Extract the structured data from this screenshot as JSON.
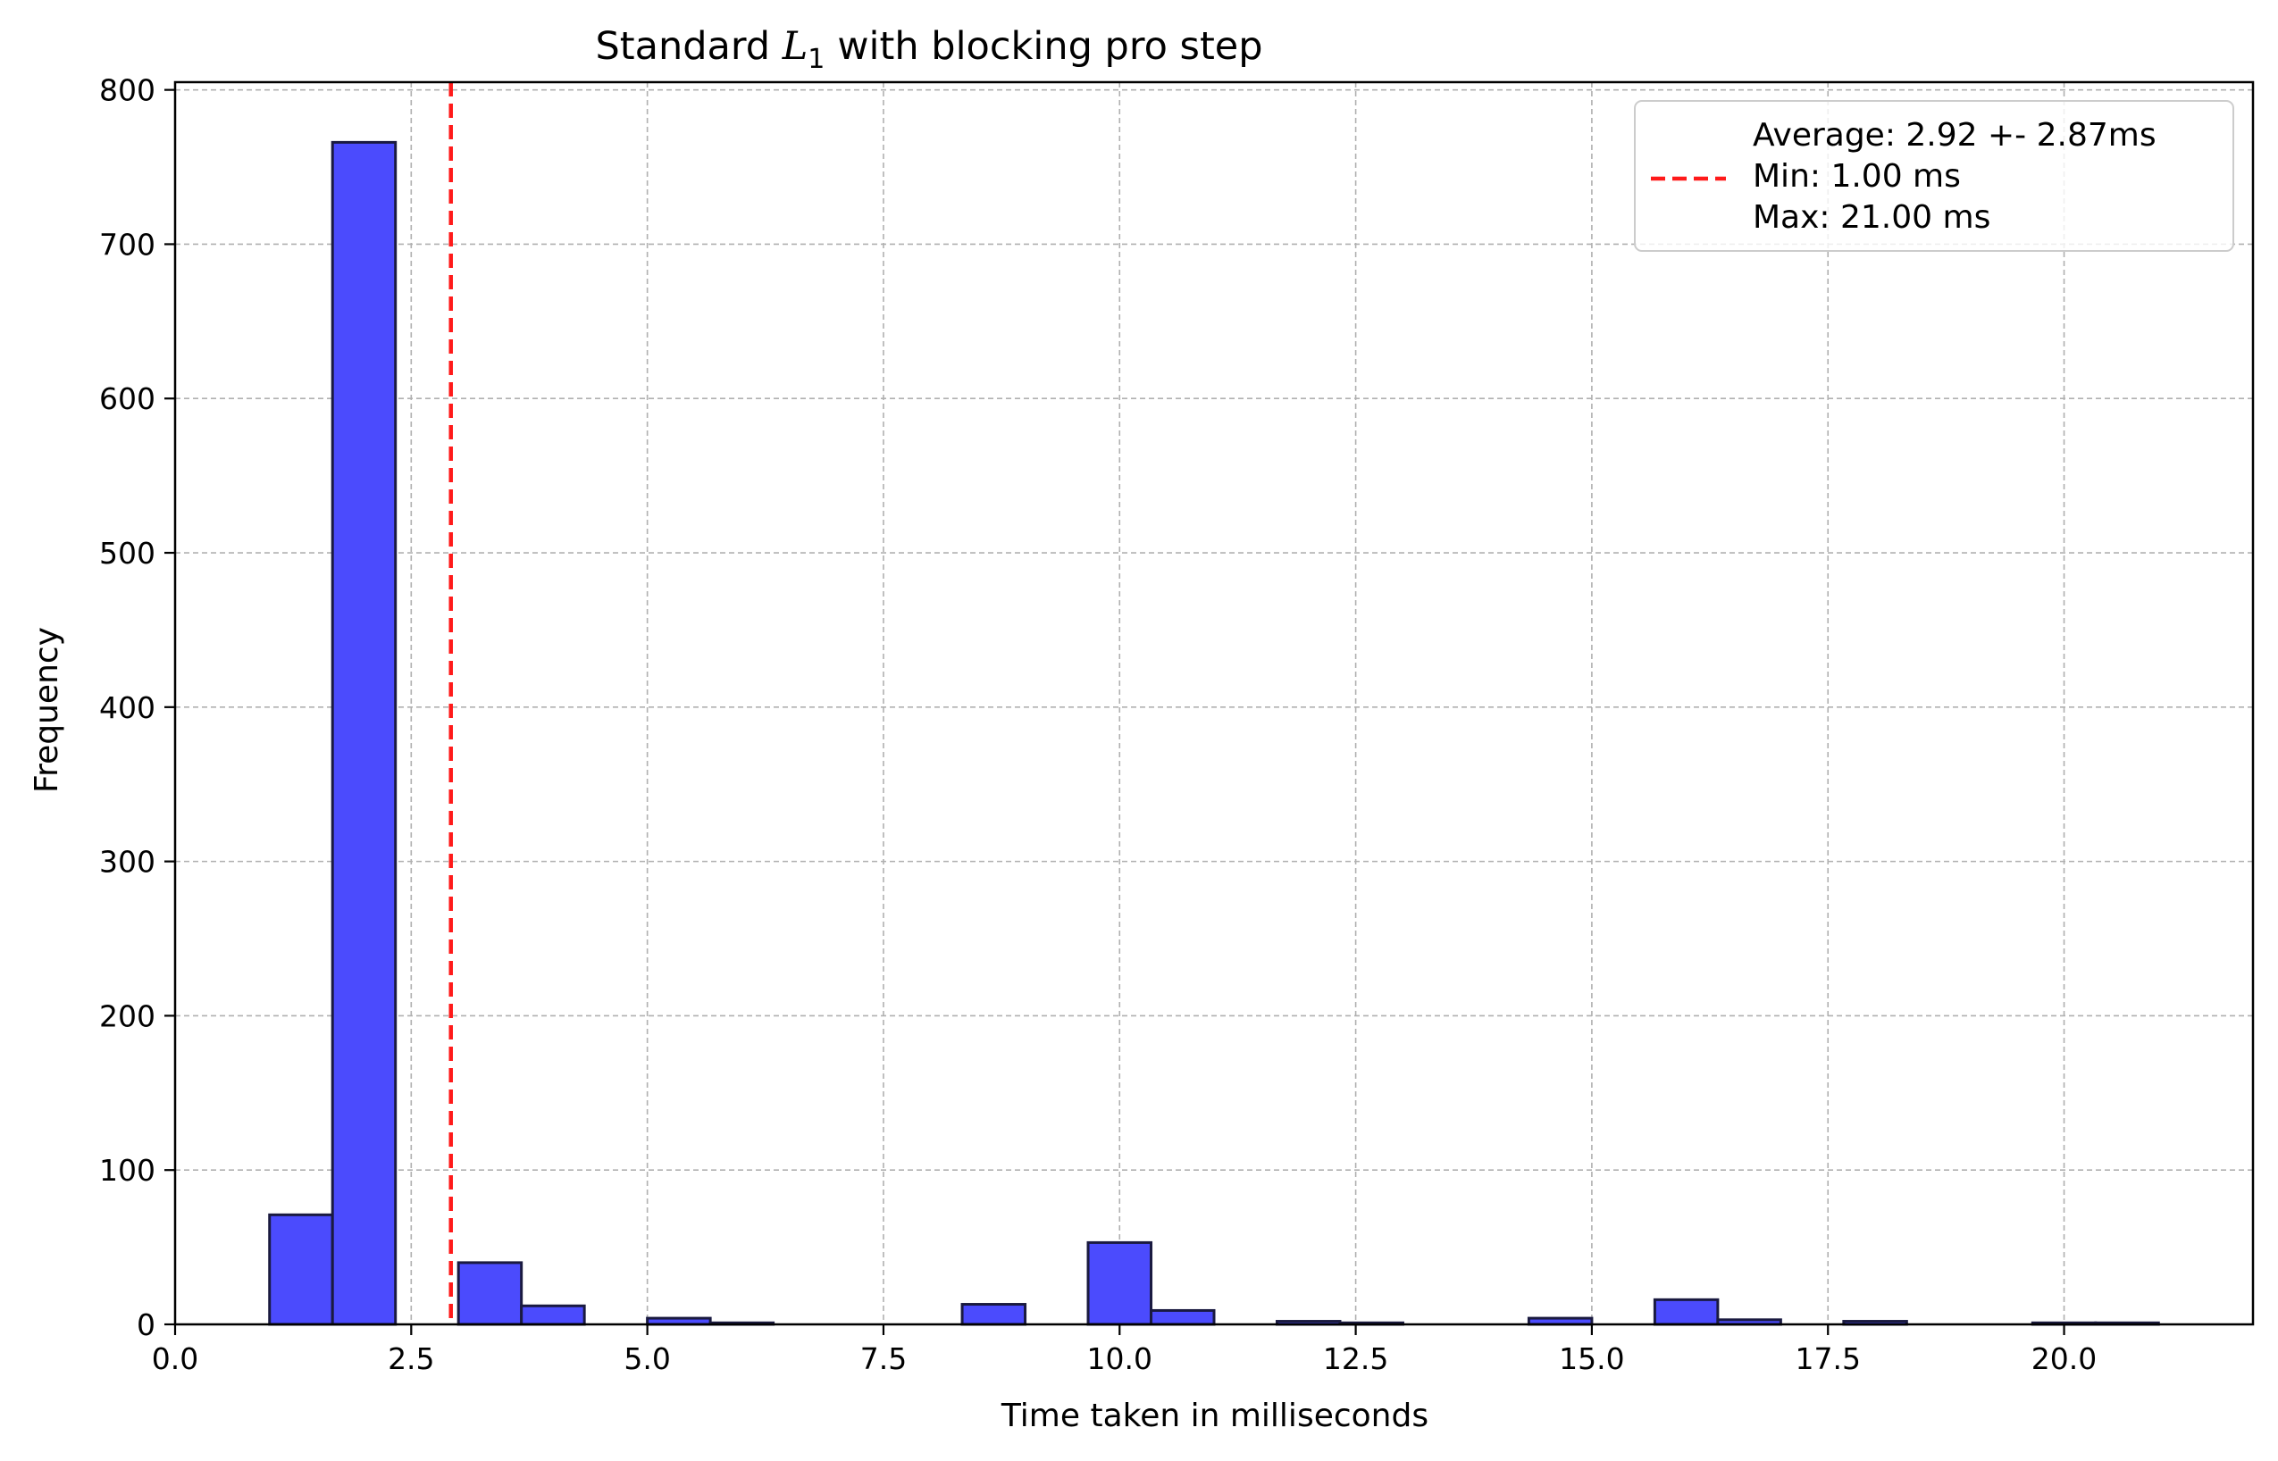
{
  "chart_data": {
    "type": "bar",
    "subtype": "histogram",
    "title": "Standard",
    "title_math_symbol": "L",
    "title_math_subscript": "1",
    "title_suffix": "with blocking pro step",
    "xlabel": "Time taken in milliseconds",
    "ylabel": "Frequency",
    "xlim": [
      0.0,
      22.0
    ],
    "ylim": [
      0,
      805
    ],
    "xticks": [
      0.0,
      2.5,
      5.0,
      7.5,
      10.0,
      12.5,
      15.0,
      17.5,
      20.0
    ],
    "xtick_labels": [
      "0.0",
      "2.5",
      "5.0",
      "7.5",
      "10.0",
      "12.5",
      "15.0",
      "17.5",
      "20.0"
    ],
    "yticks": [
      0,
      100,
      200,
      300,
      400,
      500,
      600,
      700,
      800
    ],
    "ytick_labels": [
      "0",
      "100",
      "200",
      "300",
      "400",
      "500",
      "600",
      "700",
      "800"
    ],
    "grid": true,
    "bin_range": [
      1.0,
      21.0
    ],
    "bin_count": 30,
    "values": [
      71,
      766,
      0,
      40,
      12,
      0,
      4,
      1,
      0,
      0,
      0,
      13,
      0,
      53,
      9,
      0,
      2,
      1,
      0,
      0,
      4,
      0,
      16,
      3,
      0,
      2,
      0,
      0,
      1,
      1
    ],
    "bar_color": "#4b4bfd",
    "bar_edge_color": "#1a1a40",
    "mean_line": {
      "x": 2.92,
      "color": "#ff1a1a",
      "style": "dashed",
      "label_lines": [
        "Average: 2.92 +- 2.87ms",
        "Min: 1.00 ms",
        "Max: 21.00 ms"
      ]
    },
    "legend_position": "upper right"
  }
}
